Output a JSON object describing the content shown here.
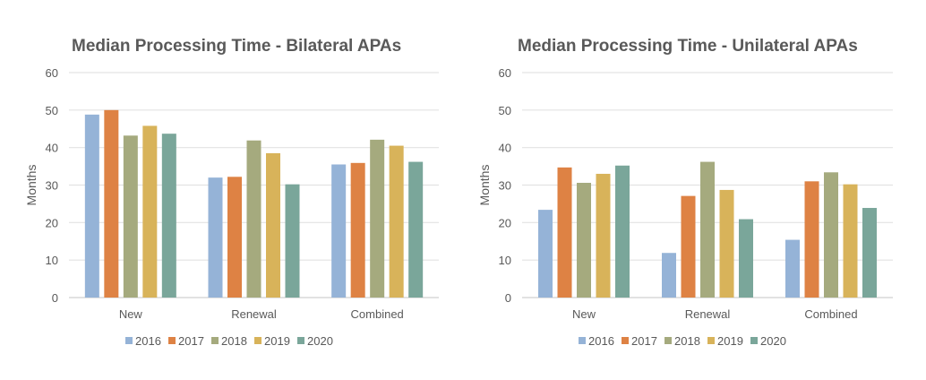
{
  "colors": [
    "#95B3D7",
    "#DE8244",
    "#A5AA7E",
    "#D8B35A",
    "#7AA69A"
  ],
  "chart_data": [
    {
      "type": "bar",
      "title": "Median Processing Time - Bilateral APAs",
      "xlabel": "",
      "ylabel": "Months",
      "ylim": [
        0,
        60
      ],
      "yticks": [
        0,
        10,
        20,
        30,
        40,
        50,
        60
      ],
      "grid": true,
      "legend": "bottom",
      "categories": [
        "New",
        "Renewal",
        "Combined"
      ],
      "series": [
        {
          "name": "2016",
          "values": [
            48.8,
            32.0,
            35.5
          ]
        },
        {
          "name": "2017",
          "values": [
            50.0,
            32.2,
            35.9
          ]
        },
        {
          "name": "2018",
          "values": [
            43.2,
            41.9,
            42.1
          ]
        },
        {
          "name": "2019",
          "values": [
            45.8,
            38.5,
            40.5
          ]
        },
        {
          "name": "2020",
          "values": [
            43.7,
            30.2,
            36.2
          ]
        }
      ]
    },
    {
      "type": "bar",
      "title": "Median Processing Time - Unilateral APAs",
      "xlabel": "",
      "ylabel": "Months",
      "ylim": [
        0,
        60
      ],
      "yticks": [
        0,
        10,
        20,
        30,
        40,
        50,
        60
      ],
      "grid": true,
      "legend": "bottom",
      "categories": [
        "New",
        "Renewal",
        "Combined"
      ],
      "series": [
        {
          "name": "2016",
          "values": [
            23.4,
            11.9,
            15.4
          ]
        },
        {
          "name": "2017",
          "values": [
            34.7,
            27.1,
            31.0
          ]
        },
        {
          "name": "2018",
          "values": [
            30.6,
            36.2,
            33.4
          ]
        },
        {
          "name": "2019",
          "values": [
            33.0,
            28.7,
            30.2
          ]
        },
        {
          "name": "2020",
          "values": [
            35.2,
            20.9,
            23.9
          ]
        }
      ]
    }
  ]
}
